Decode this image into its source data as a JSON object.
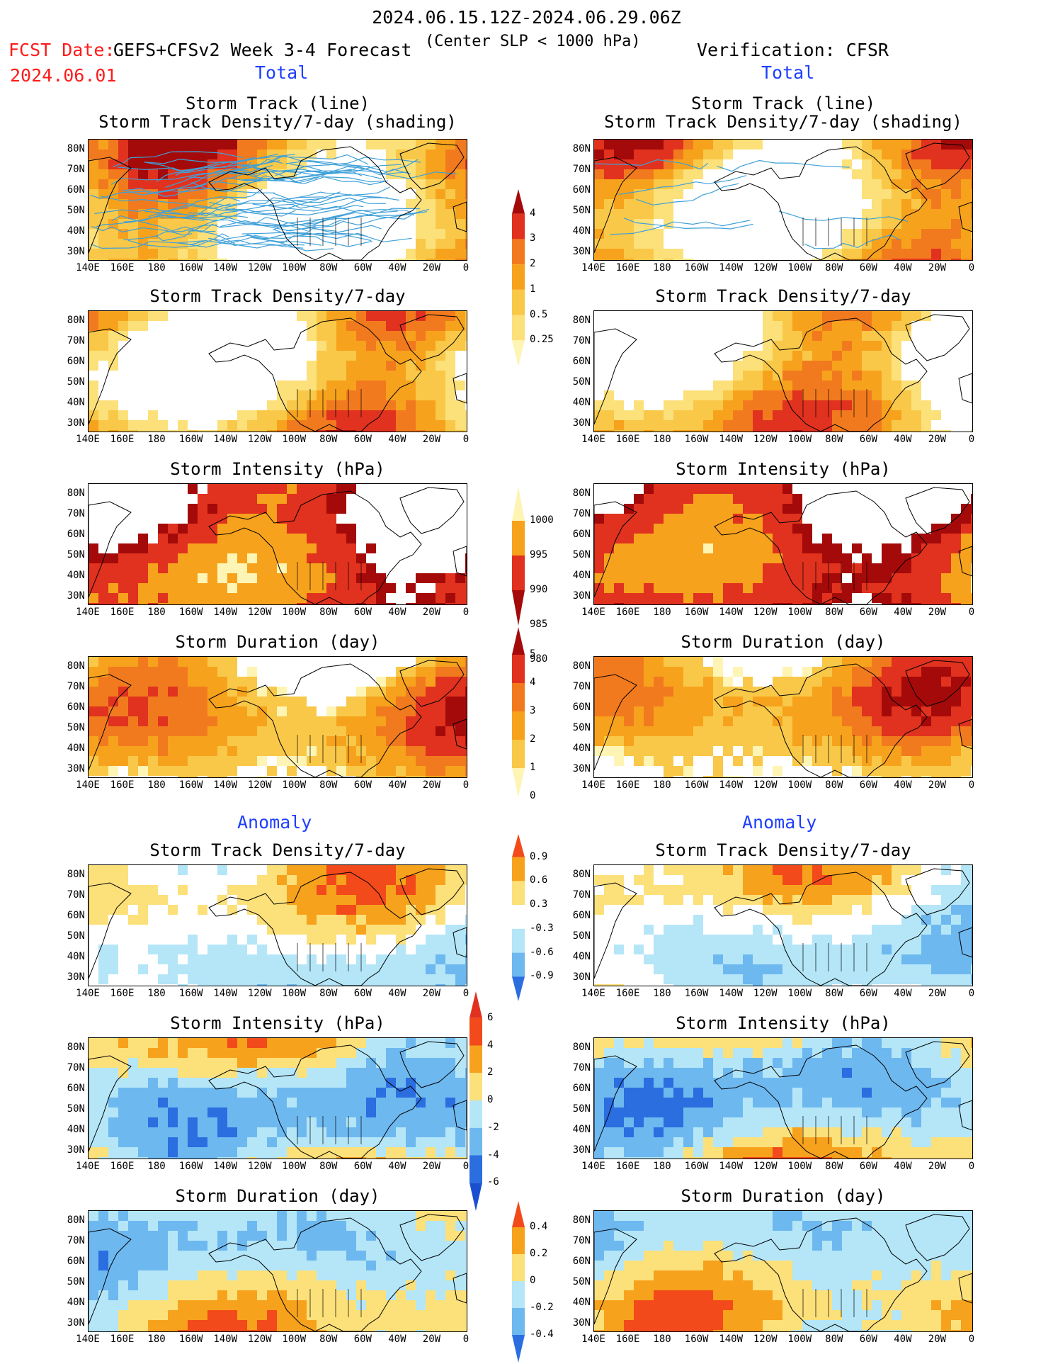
{
  "header": {
    "date_range": "2024.06.15.12Z-2024.06.29.06Z",
    "fcst_date_label": "FCST Date:",
    "fcst_date_value": "2024.06.01",
    "model_title": "GEFS+CFSv2 Week 3-4 Forecast",
    "criterion": "(Center SLP < 1000 hPa)",
    "verification": "Verification: CFSR"
  },
  "sections": {
    "total_left": "Total",
    "total_right": "Total",
    "anomaly_left": "Anomaly",
    "anomaly_right": "Anomaly"
  },
  "panel_titles": {
    "track_line": "Storm Track (line)",
    "track_density_shading": "Storm Track Density/7-day (shading)",
    "track_density": "Storm Track Density/7-day",
    "intensity": "Storm Intensity (hPa)",
    "duration": "Storm Duration (day)"
  },
  "axes": {
    "lat_ticks": [
      "80N",
      "70N",
      "60N",
      "50N",
      "40N",
      "30N"
    ],
    "lon_ticks": [
      "140E",
      "160E",
      "180",
      "160W",
      "140W",
      "120W",
      "100W",
      "80W",
      "60W",
      "40W",
      "20W",
      "0"
    ]
  },
  "colors": {
    "track_line": "#3fa0d8",
    "land_outline": "#000000"
  },
  "colorbars": [
    {
      "id": "density",
      "labels": [
        "4",
        "3",
        "2",
        "1",
        "0.5",
        "0.25"
      ],
      "colors": [
        "#a50a0a",
        "#e0321e",
        "#f27a1e",
        "#f7a21c",
        "#f9c848",
        "#fce07a",
        "#fef4b4"
      ]
    },
    {
      "id": "intensity",
      "labels": [
        "1000",
        "995",
        "990",
        "985",
        "980"
      ],
      "colors": [
        "#fef4b4",
        "#f7a21c",
        "#e0321e",
        "#a50a0a"
      ]
    },
    {
      "id": "duration",
      "labels": [
        "5",
        "4",
        "3",
        "2",
        "1",
        "0"
      ],
      "colors": [
        "#a50a0a",
        "#e0321e",
        "#f27a1e",
        "#f7a21c",
        "#f9c848",
        "#fef4b4"
      ]
    },
    {
      "id": "density_anom",
      "labels": [
        "0.9",
        "0.6",
        "0.3",
        "-0.3",
        "-0.6",
        "-0.9"
      ],
      "colors": [
        "#f24a1a",
        "#f7a21c",
        "#fce07a",
        "#ffffff",
        "#b4e6f8",
        "#6eb8f0",
        "#2a6ee0"
      ]
    },
    {
      "id": "intensity_anom",
      "labels": [
        "6",
        "4",
        "2",
        "0",
        "-2",
        "-4",
        "-6"
      ],
      "colors": [
        "#e0321e",
        "#f24a1a",
        "#f7a21c",
        "#fce07a",
        "#b4e6f8",
        "#6eb8f0",
        "#2a6ee0",
        "#1a4fd0"
      ]
    },
    {
      "id": "duration_anom",
      "labels": [
        "0.4",
        "0.2",
        "0",
        "-0.2",
        "-0.4"
      ],
      "colors": [
        "#f24a1a",
        "#f7a21c",
        "#fce07a",
        "#b4e6f8",
        "#6eb8f0",
        "#2a6ee0"
      ]
    }
  ],
  "chart_data": [
    {
      "type": "heatmap",
      "panel": "Forecast total storm track + density",
      "title": "Storm Track (line) / Storm Track Density/7-day (shading)",
      "x": "longitude 140E–0",
      "y": "latitude 25N–85N",
      "legend": "density"
    },
    {
      "type": "heatmap",
      "panel": "Verification total storm track + density",
      "title": "Storm Track (line) / Storm Track Density/7-day (shading)",
      "legend": "density"
    },
    {
      "type": "heatmap",
      "panel": "Forecast total density",
      "title": "Storm Track Density/7-day",
      "legend": "density"
    },
    {
      "type": "heatmap",
      "panel": "Verification total density",
      "title": "Storm Track Density/7-day",
      "legend": "density"
    },
    {
      "type": "heatmap",
      "panel": "Forecast total intensity",
      "title": "Storm Intensity (hPa)",
      "legend": "intensity"
    },
    {
      "type": "heatmap",
      "panel": "Verification total intensity",
      "title": "Storm Intensity (hPa)",
      "legend": "intensity"
    },
    {
      "type": "heatmap",
      "panel": "Forecast total duration",
      "title": "Storm Duration (day)",
      "legend": "duration"
    },
    {
      "type": "heatmap",
      "panel": "Verification total duration",
      "title": "Storm Duration (day)",
      "legend": "duration"
    },
    {
      "type": "heatmap",
      "panel": "Forecast anomaly density",
      "title": "Storm Track Density/7-day",
      "legend": "density_anom"
    },
    {
      "type": "heatmap",
      "panel": "Verification anomaly density",
      "title": "Storm Track Density/7-day",
      "legend": "density_anom"
    },
    {
      "type": "heatmap",
      "panel": "Forecast anomaly intensity",
      "title": "Storm Intensity (hPa)",
      "legend": "intensity_anom"
    },
    {
      "type": "heatmap",
      "panel": "Verification anomaly intensity",
      "title": "Storm Intensity (hPa)",
      "legend": "intensity_anom"
    },
    {
      "type": "heatmap",
      "panel": "Forecast anomaly duration",
      "title": "Storm Duration (day)",
      "legend": "duration_anom"
    },
    {
      "type": "heatmap",
      "panel": "Verification anomaly duration",
      "title": "Storm Duration (day)",
      "legend": "duration_anom"
    }
  ]
}
